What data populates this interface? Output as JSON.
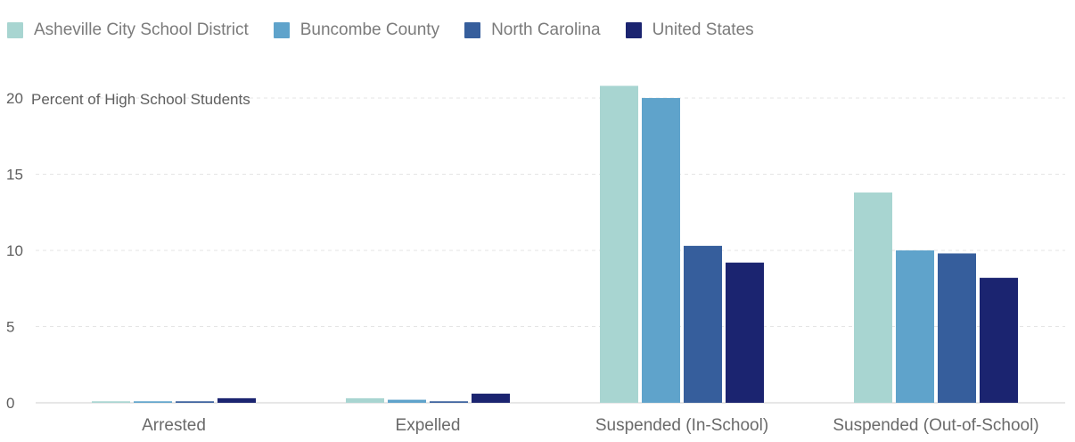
{
  "chart_data": {
    "type": "bar",
    "ylabel": "Percent of High School Students",
    "ylim": [
      0,
      20
    ],
    "yticks": [
      0,
      5,
      10,
      15,
      20
    ],
    "grid": true,
    "legend_position": "top-left",
    "categories": [
      "Arrested",
      "Expelled",
      "Suspended (In-School)",
      "Suspended (Out-of-School)"
    ],
    "series": [
      {
        "name": "Asheville City School District",
        "color": "#a8d5d1",
        "values": [
          0.1,
          0.3,
          20.8,
          13.8
        ]
      },
      {
        "name": "Buncombe County",
        "color": "#5fa3cb",
        "values": [
          0.1,
          0.2,
          20.0,
          10.0
        ]
      },
      {
        "name": "North Carolina",
        "color": "#365e9c",
        "values": [
          0.1,
          0.1,
          10.3,
          9.8
        ]
      },
      {
        "name": "United States",
        "color": "#1b2470",
        "values": [
          0.3,
          0.6,
          9.2,
          8.2
        ]
      }
    ]
  }
}
